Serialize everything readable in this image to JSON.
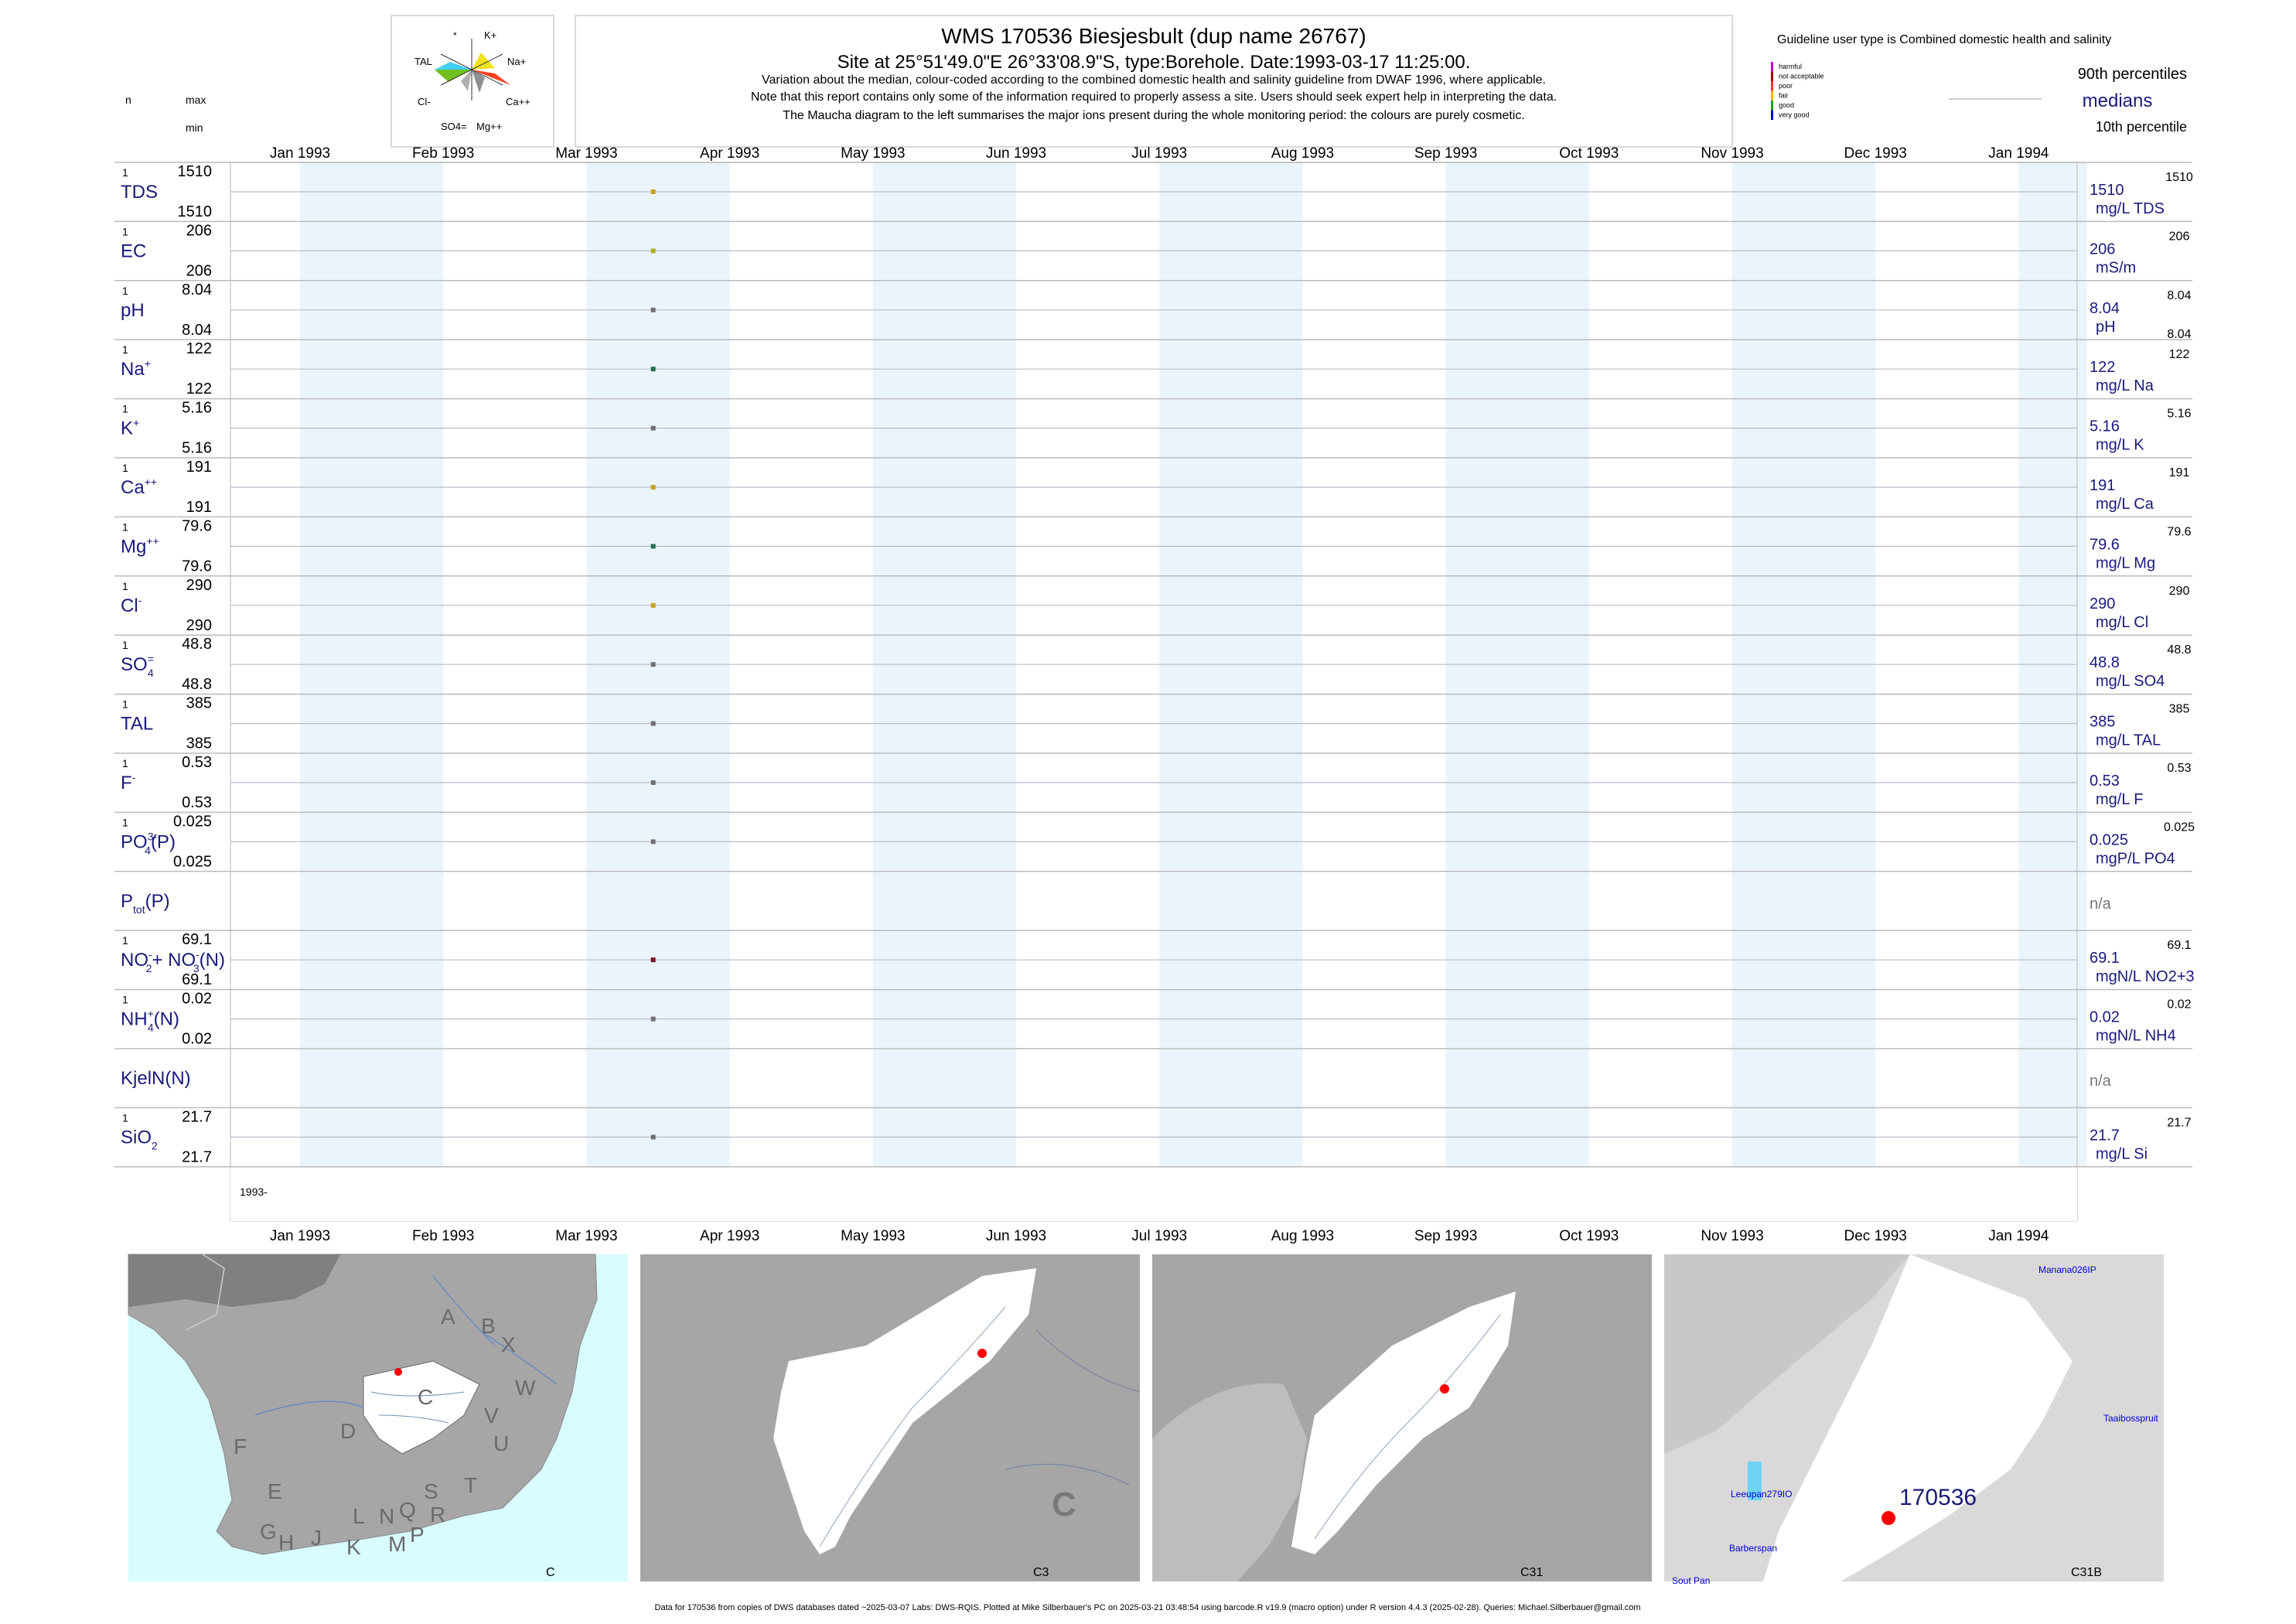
{
  "header": {
    "title": "WMS 170536  Biesjesbult (dup name 26767)",
    "site": "Site at 25°51'49.0\"E 26°33'08.9\"S, type:Borehole. Date:1993-03-17 11:25:00.",
    "note1": "Variation about the median,  colour-coded according to the combined domestic health and salinity guideline from DWAF 1996, where applicable.",
    "note2": "Note that this report contains only some of the information required to properly assess a site. Users should seek expert help in interpreting the data.",
    "note3": "The Maucha diagram to the left summarises the major ions present during the whole monitoring period: the colours are purely cosmetic."
  },
  "maucha": {
    "labels": [
      "*",
      "K+",
      "Na+",
      "Ca++",
      "Mg++",
      "SO4=",
      "Cl-",
      "TAL"
    ],
    "colors": [
      "#40d0ff",
      "#f0e020",
      "#ff4020",
      "#909090",
      "#70c020"
    ]
  },
  "left_header": {
    "n": "n",
    "max": "max",
    "min": "min"
  },
  "legend": {
    "guideline": "Guideline user type is Combined domestic health and salinity",
    "classes": [
      {
        "label": "harmful",
        "color": "#cc00cc"
      },
      {
        "label": "not acceptable",
        "color": "#aa0000"
      },
      {
        "label": "poor",
        "color": "#ff3030"
      },
      {
        "label": "fair",
        "color": "#ffb000"
      },
      {
        "label": "good",
        "color": "#20a020"
      },
      {
        "label": "very good",
        "color": "#0000cc"
      }
    ],
    "p90": "90th percentiles",
    "medians": "medians",
    "p10": "10th percentile"
  },
  "chart_data": {
    "type": "scatter",
    "x_axis_ticks": [
      "Jan 1993",
      "Feb 1993",
      "Mar 1993",
      "Apr 1993",
      "May 1993",
      "Jun 1993",
      "Jul 1993",
      "Aug 1993",
      "Sep 1993",
      "Oct 1993",
      "Nov 1993",
      "Dec 1993",
      "Jan 1994"
    ],
    "x_start_label": "1993-",
    "sample_date": "1993-03-17",
    "panels": [
      {
        "id": "tds",
        "label": "TDS",
        "n": "1",
        "max": "1510",
        "min": "1510",
        "median": "1510",
        "p90": "1510",
        "p10": "",
        "unit": "mg/L TDS",
        "color": "#c8a020"
      },
      {
        "id": "ec",
        "label": "EC",
        "n": "1",
        "max": "206",
        "min": "206",
        "median": "206",
        "p90": "206",
        "p10": "",
        "unit": "mS/m",
        "color": "#b0b020"
      },
      {
        "id": "ph",
        "label": "pH",
        "n": "1",
        "max": "8.04",
        "min": "8.04",
        "median": "8.04",
        "p90": "8.04",
        "p10": "8.04",
        "unit": "pH",
        "color": "#707070"
      },
      {
        "id": "na",
        "label": "Na",
        "sup": "+",
        "n": "1",
        "max": "122",
        "min": "122",
        "median": "122",
        "p90": "122",
        "p10": "",
        "unit": "mg/L Na",
        "color": "#207050"
      },
      {
        "id": "k",
        "label": "K",
        "sup": "+",
        "n": "1",
        "max": "5.16",
        "min": "5.16",
        "median": "5.16",
        "p90": "5.16",
        "p10": "",
        "unit": "mg/L K",
        "color": "#707070"
      },
      {
        "id": "ca",
        "label": "Ca",
        "sup": "++",
        "n": "1",
        "max": "191",
        "min": "191",
        "median": "191",
        "p90": "191",
        "p10": "",
        "unit": "mg/L Ca",
        "color": "#c8a020"
      },
      {
        "id": "mg",
        "label": "Mg",
        "sup": "++",
        "n": "1",
        "max": "79.6",
        "min": "79.6",
        "median": "79.6",
        "p90": "79.6",
        "p10": "",
        "unit": "mg/L Mg",
        "color": "#207050"
      },
      {
        "id": "cl",
        "label": "Cl",
        "sup": "-",
        "n": "1",
        "max": "290",
        "min": "290",
        "median": "290",
        "p90": "290",
        "p10": "",
        "unit": "mg/L Cl",
        "color": "#c8a020"
      },
      {
        "id": "so4",
        "label": "SO",
        "sub": "4",
        "sup": "=",
        "n": "1",
        "max": "48.8",
        "min": "48.8",
        "median": "48.8",
        "p90": "48.8",
        "p10": "",
        "unit": "mg/L SO4",
        "color": "#707070"
      },
      {
        "id": "tal",
        "label": "TAL",
        "n": "1",
        "max": "385",
        "min": "385",
        "median": "385",
        "p90": "385",
        "p10": "",
        "unit": "mg/L TAL",
        "color": "#707070"
      },
      {
        "id": "f",
        "label": "F",
        "sup": "-",
        "n": "1",
        "max": "0.53",
        "min": "0.53",
        "median": "0.53",
        "p90": "0.53",
        "p10": "",
        "unit": "mg/L F",
        "color": "#707070"
      },
      {
        "id": "po4",
        "label": "PO",
        "sub": "4",
        "sup": "3-",
        "suffix": "(P)",
        "n": "1",
        "max": "0.025",
        "min": "0.025",
        "median": "0.025",
        "p90": "0.025",
        "p10": "",
        "unit": "mgP/L PO4",
        "color": "#707070"
      },
      {
        "id": "ptot",
        "label": "P",
        "sub": "tot",
        "suffix": "(P)",
        "n": "",
        "max": "",
        "min": "",
        "median": "",
        "p90": "",
        "p10": "",
        "unit": "",
        "na": "n/a",
        "color": null
      },
      {
        "id": "no",
        "label": "NO",
        "sub": "2",
        "sup": "-",
        "suffix": "+ NO",
        "sub2": "3",
        "sup2": "-",
        "suffix2": "(N)",
        "n": "1",
        "max": "69.1",
        "min": "69.1",
        "median": "69.1",
        "p90": "69.1",
        "p10": "",
        "unit": "mgN/L NO2+3",
        "color": "#801020"
      },
      {
        "id": "nh4",
        "label": "NH",
        "sub": "4",
        "sup": "+",
        "suffix": "(N)",
        "n": "1",
        "max": "0.02",
        "min": "0.02",
        "median": "0.02",
        "p90": "0.02",
        "p10": "",
        "unit": "mgN/L NH4",
        "color": "#707070"
      },
      {
        "id": "kjel",
        "label": "KjelN(N)",
        "n": "",
        "max": "",
        "min": "",
        "median": "",
        "p90": "",
        "p10": "",
        "unit": "",
        "na": "n/a",
        "color": null
      },
      {
        "id": "sio2",
        "label": "SiO",
        "sub": "2",
        "n": "1",
        "max": "21.7",
        "min": "21.7",
        "median": "21.7",
        "p90": "21.7",
        "p10": "",
        "unit": "mg/L Si",
        "color": "#707070"
      }
    ]
  },
  "maps": [
    {
      "id": "map-c",
      "caption": "C",
      "letters": [
        "A",
        "B",
        "X",
        "W",
        "C",
        "D",
        "V",
        "U",
        "T",
        "F",
        "E",
        "S",
        "R",
        "L",
        "N",
        "Q",
        "G",
        "H",
        "J",
        "K",
        "M",
        "P"
      ]
    },
    {
      "id": "map-c3",
      "caption": "C3",
      "big_letter": "C"
    },
    {
      "id": "map-c31",
      "caption": "C31"
    },
    {
      "id": "map-c31b",
      "caption": "C31B",
      "site_label": "170536",
      "places": [
        "Manana026IP",
        "Taaibosspruit",
        "Leeupan279IO",
        "Barberspan",
        "Sout Pan"
      ]
    }
  ],
  "footer": "Data for 170536 from copies of DWS databases dated ~2025-03-07 Labs: DWS-RQIS. Plotted at Mike Silberbauer's PC on 2025-03-21 03:48:54 using barcode.R v19.9 (macro option) under R version 4.4.3 (2025-02-28). Queries: Michael.Silberbauer@gmail.com"
}
